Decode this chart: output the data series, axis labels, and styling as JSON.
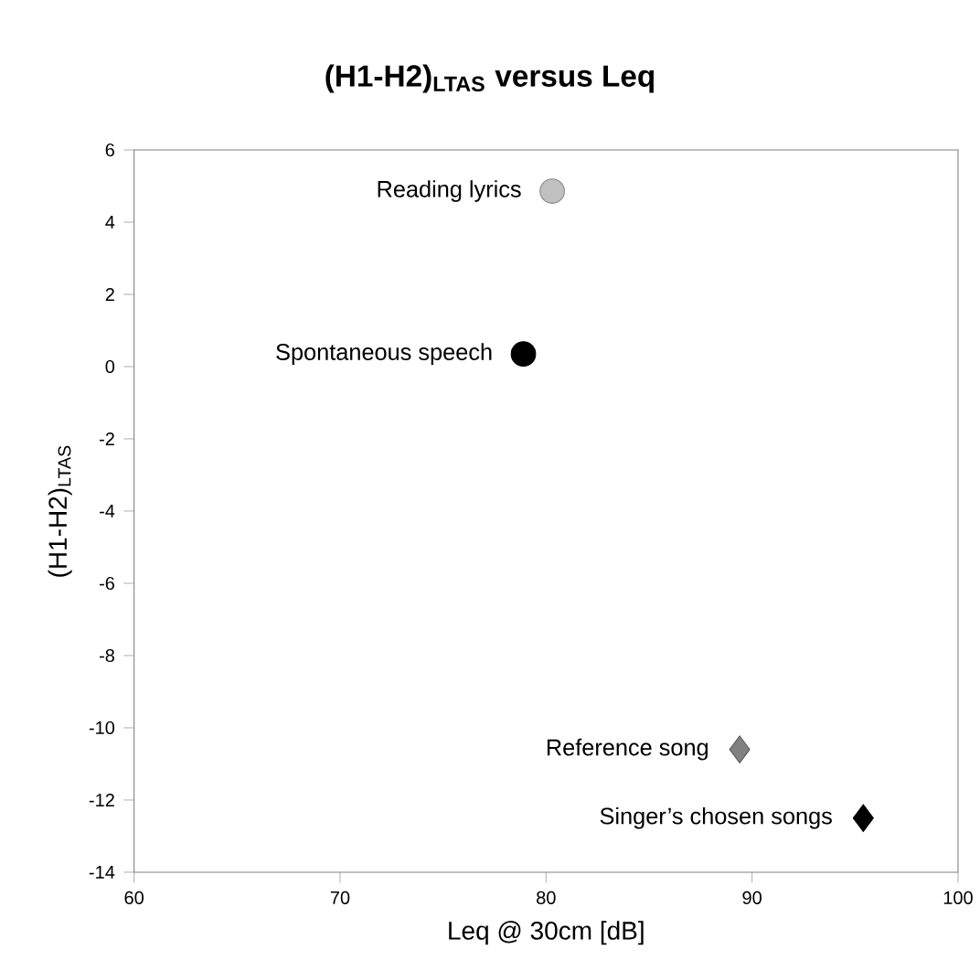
{
  "chart_data": {
    "type": "scatter",
    "title": "(H1-H2)$_{LTAS}$ versus Leq",
    "xlabel": "Leq @ 30cm [dB]",
    "ylabel": "(H1-H2)$_{LTAS}$",
    "xlim": [
      60,
      100
    ],
    "xticks": [
      60,
      70,
      80,
      90,
      100
    ],
    "ylim": [
      -14,
      6
    ],
    "yticks": [
      -14,
      -12,
      -10,
      -8,
      -6,
      -4,
      -2,
      0,
      2,
      4,
      6
    ],
    "series": [
      {
        "name": "Reading lyrics",
        "color": "#c0c0c0",
        "marker": "circle",
        "x": [
          80.3
        ],
        "values": [
          4.86
        ]
      },
      {
        "name": "Spontaneous speech",
        "color": "#000000",
        "marker": "circle",
        "x": [
          78.9
        ],
        "values": [
          0.35
        ]
      },
      {
        "name": "Reference song",
        "color": "#808080",
        "marker": "diamond",
        "x": [
          89.4
        ],
        "values": [
          -10.6
        ]
      },
      {
        "name": "Singer’s chosen songs",
        "color": "#000000",
        "marker": "diamond",
        "x": [
          95.4
        ],
        "values": [
          -12.5
        ]
      }
    ]
  }
}
